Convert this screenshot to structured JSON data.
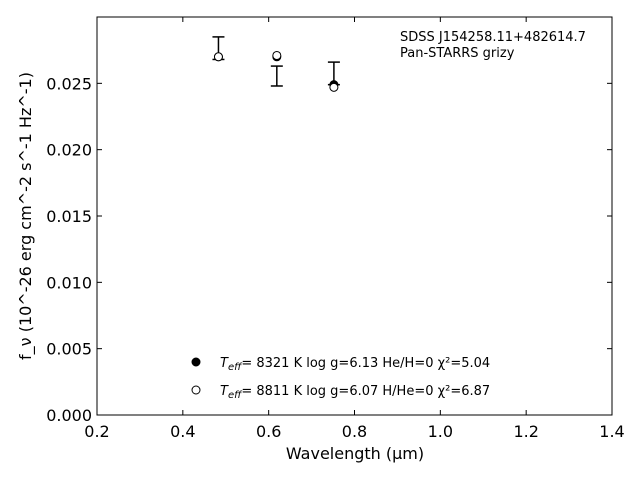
{
  "chart_data": {
    "type": "scatter",
    "title": "",
    "xlabel": "Wavelength (μm)",
    "ylabel": "f_ν (10^-26 erg cm^-2 s^-1 Hz^-1)",
    "xlim": [
      0.2,
      1.4
    ],
    "ylim": [
      0.0,
      0.03
    ],
    "x_ticks": [
      "0.2",
      "0.4",
      "0.6",
      "0.8",
      "1.0",
      "1.2",
      "1.4"
    ],
    "y_ticks": [
      "0.000",
      "0.005",
      "0.010",
      "0.015",
      "0.020",
      "0.025"
    ],
    "annotation": [
      "SDSS J154258.11+482614.7",
      "Pan-STARRS grizy"
    ],
    "observed": [
      {
        "x": 0.483,
        "y": 0.02765,
        "yerr": 0.00085
      },
      {
        "x": 0.619,
        "y": 0.02555,
        "yerr": 0.00075
      },
      {
        "x": 0.752,
        "y": 0.02575,
        "yerr": 0.00085
      }
    ],
    "series": [
      {
        "label_prefix": "T",
        "label_sub": "eff",
        "label_rest": "=  8321 K  log g=6.13  He/H=0  χ²=5.04",
        "marker": "filled",
        "x": [
          0.483,
          0.619,
          0.752
        ],
        "y": [
          0.027,
          0.027,
          0.0249
        ]
      },
      {
        "label_prefix": "T",
        "label_sub": "eff",
        "label_rest": "=  8811 K  log g=6.07  H/He=0  χ²=6.87",
        "marker": "open",
        "x": [
          0.483,
          0.619,
          0.752
        ],
        "y": [
          0.027,
          0.0271,
          0.0247
        ]
      }
    ],
    "grid": false,
    "legend_position": "bottom-center"
  }
}
